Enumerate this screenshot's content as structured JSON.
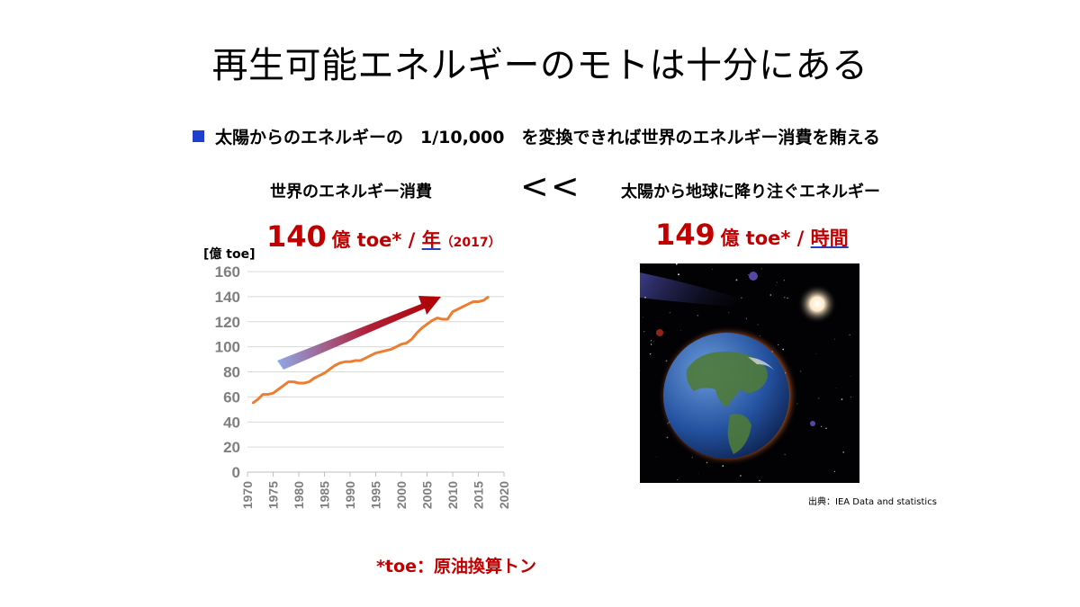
{
  "slide": {
    "title": "再生可能エネルギーのモトは十分にある",
    "bullet": "太陽からのエネルギーの　1/10,000　を変換できれば世界のエネルギー消費を賄える",
    "left_label": "世界のエネルギー消費",
    "comparison": "<<",
    "right_label": "太陽から地球に降り注ぐエネルギー",
    "left_value": {
      "number": "140",
      "unit": "億 toe* / ",
      "period": "年",
      "year": "（2017）"
    },
    "right_value": {
      "number": "149",
      "unit": "億 toe* / ",
      "period": "時間"
    },
    "source": "出典：IEA Data and statistics",
    "footnote": "*toe：原油換算トン",
    "colors": {
      "accent_red": "#c00000",
      "bullet_blue": "#1f3fcf",
      "line_orange": "#ed7d31"
    }
  },
  "chart_data": {
    "type": "line",
    "ylabel": "[億 toe]",
    "xlim": [
      1970,
      2020
    ],
    "ylim": [
      0,
      160
    ],
    "x_ticks": [
      1970,
      1975,
      1980,
      1985,
      1990,
      1995,
      2000,
      2005,
      2010,
      2015,
      2020
    ],
    "y_ticks": [
      0,
      20,
      40,
      60,
      80,
      100,
      120,
      140,
      160
    ],
    "grid": true,
    "series": [
      {
        "x": [
          1971,
          1972,
          1973,
          1974,
          1975,
          1976,
          1977,
          1978,
          1979,
          1980,
          1981,
          1982,
          1983,
          1984,
          1985,
          1986,
          1987,
          1988,
          1989,
          1990,
          1991,
          1992,
          1993,
          1994,
          1995,
          1996,
          1997,
          1998,
          1999,
          2000,
          2001,
          2002,
          2003,
          2004,
          2005,
          2006,
          2007,
          2008,
          2009,
          2010,
          2011,
          2012,
          2013,
          2014,
          2015,
          2016,
          2017
        ],
        "values": [
          55,
          58,
          62,
          62,
          63,
          66,
          69,
          72,
          72,
          71,
          71,
          72,
          75,
          77,
          79,
          82,
          85,
          87,
          88,
          88,
          89,
          89,
          91,
          93,
          95,
          96,
          97,
          98,
          100,
          102,
          103,
          106,
          111,
          115,
          118,
          121,
          123,
          122,
          122,
          128,
          130,
          132,
          134,
          136,
          136,
          137,
          140
        ]
      }
    ],
    "annotation": "upward-trend-arrow"
  }
}
